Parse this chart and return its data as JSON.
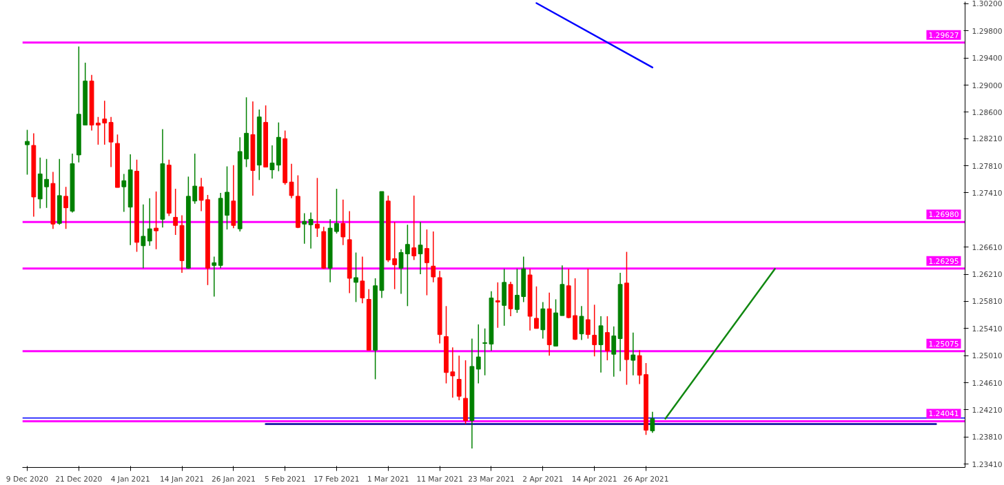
{
  "chart_data": {
    "type": "candlestick",
    "categories": [
      "9 Dec 2020",
      null,
      null,
      null,
      null,
      null,
      null,
      null,
      "21 Dec 2020",
      null,
      null,
      null,
      null,
      null,
      null,
      null,
      "4 Jan 2021",
      null,
      null,
      null,
      null,
      null,
      null,
      null,
      "14 Jan 2021",
      null,
      null,
      null,
      null,
      null,
      null,
      null,
      "26 Jan 2021",
      null,
      null,
      null,
      null,
      null,
      null,
      null,
      "5 Feb 2021",
      null,
      null,
      null,
      null,
      null,
      null,
      null,
      "17 Feb 2021",
      null,
      null,
      null,
      null,
      null,
      null,
      null,
      "1 Mar 2021",
      null,
      null,
      null,
      null,
      null,
      null,
      null,
      "11 Mar 2021",
      null,
      null,
      null,
      null,
      null,
      null,
      null,
      "23 Mar 2021",
      null,
      null,
      null,
      null,
      null,
      null,
      null,
      "2 Apr 2021",
      null,
      null,
      null,
      null,
      null,
      null,
      null,
      "14 Apr 2021",
      null,
      null,
      null,
      null,
      null,
      null,
      null,
      "26 Apr 2021",
      null,
      null,
      null,
      null,
      null,
      null,
      null,
      null,
      null,
      null,
      null,
      null,
      null,
      null,
      null,
      null,
      null,
      null,
      null,
      null,
      null,
      null,
      null,
      null,
      null,
      null,
      null,
      null,
      null,
      null,
      null,
      null,
      null,
      null,
      null,
      null,
      null,
      null,
      null,
      null,
      null,
      null,
      null,
      null,
      null,
      null,
      null,
      null,
      null
    ],
    "ylim": [
      1.2336,
      1.3023
    ],
    "yticks": [
      {
        "value": 1.302,
        "label": "1.30200"
      },
      {
        "value": 1.298,
        "label": "1.29800"
      },
      {
        "value": 1.294,
        "label": "1.29400"
      },
      {
        "value": 1.29,
        "label": "1.29000"
      },
      {
        "value": 1.286,
        "label": "1.28600"
      },
      {
        "value": 1.2821,
        "label": "1.28210"
      },
      {
        "value": 1.2781,
        "label": "1.27810"
      },
      {
        "value": 1.2741,
        "label": "1.27410"
      },
      {
        "value": 1.2661,
        "label": "1.26610"
      },
      {
        "value": 1.2621,
        "label": "1.26210"
      },
      {
        "value": 1.2581,
        "label": "1.25810"
      },
      {
        "value": 1.2541,
        "label": "1.25410"
      },
      {
        "value": 1.2501,
        "label": "1.25010"
      },
      {
        "value": 1.2461,
        "label": "1.24610"
      },
      {
        "value": 1.2421,
        "label": "1.24210"
      },
      {
        "value": 1.2381,
        "label": "1.23810"
      },
      {
        "value": 1.2341,
        "label": "1.23410"
      }
    ],
    "series": [
      {
        "colors": [
          "#008000",
          "#ff0000",
          "#008000",
          "#008000",
          "#ff0000",
          "#008000",
          "#ff0000",
          "#008000",
          "#008000",
          "#008000",
          "#ff0000",
          "#ff0000",
          "#ff0000",
          "#ff0000",
          "#ff0000",
          "#008000",
          "#008000",
          "#ff0000",
          "#008000",
          "#008000",
          "#ff0000",
          "#008000",
          "#ff0000",
          "#ff0000",
          "#ff0000",
          "#008000",
          "#008000",
          "#ff0000",
          "#ff0000",
          "#008000",
          "#008000",
          "#008000",
          "#ff0000",
          "#008000",
          "#008000",
          "#ff0000",
          "#008000",
          "#ff0000",
          "#008000",
          "#008000",
          "#ff0000",
          "#ff0000",
          "#ff0000",
          "#008000",
          "#008000",
          "#ff0000",
          "#ff0000",
          "#008000",
          "#008000",
          "#ff0000",
          "#ff0000",
          "#008000",
          "#ff0000",
          "#ff0000",
          "#008000",
          "#008000",
          "#ff0000",
          "#ff0000",
          "#008000",
          "#008000",
          "#ff0000",
          "#008000",
          "#ff0000",
          "#ff0000",
          "#ff0000",
          "#ff0000",
          "#ff0000",
          "#ff0000",
          "#ff0000",
          "#008000",
          "#008000",
          "#008000",
          "#008000",
          "#ff0000",
          "#008000",
          "#ff0000",
          "#008000",
          "#008000",
          "#ff0000",
          "#ff0000",
          "#008000",
          "#ff0000",
          "#008000",
          "#008000",
          "#ff0000",
          "#ff0000",
          "#008000",
          "#ff0000",
          "#ff0000",
          "#008000",
          "#ff0000",
          "#008000",
          "#008000",
          "#ff0000",
          "#008000",
          "#ff0000",
          "#ff0000",
          "#008000",
          null,
          null,
          null,
          null,
          null,
          null,
          null,
          null,
          null,
          null,
          null,
          null,
          null,
          null,
          null,
          null,
          null,
          null,
          null,
          null,
          null,
          null,
          null,
          null,
          null,
          null,
          null,
          null,
          null,
          null,
          null,
          null,
          null,
          null,
          null,
          null,
          null,
          null,
          null,
          null,
          null,
          null,
          null,
          null,
          null,
          null,
          null,
          null
        ],
        "ohlc": [
          [
            1.2812,
            1.2834,
            1.2768,
            1.2817
          ],
          [
            1.2811,
            1.2829,
            1.2706,
            1.2735
          ],
          [
            1.2732,
            1.2793,
            1.2718,
            1.2769
          ],
          [
            1.275,
            1.2791,
            1.2719,
            1.2761
          ],
          [
            1.2755,
            1.2772,
            1.2688,
            1.2695
          ],
          [
            1.2696,
            1.2791,
            1.2694,
            1.2737
          ],
          [
            1.2736,
            1.275,
            1.2688,
            1.2719
          ],
          [
            1.2714,
            1.2799,
            1.2712,
            1.2784
          ],
          [
            1.2797,
            1.2957,
            1.2786,
            1.2857
          ],
          [
            1.2841,
            1.2933,
            1.2841,
            1.2906
          ],
          [
            1.2906,
            1.2915,
            1.2833,
            1.2841
          ],
          [
            1.2844,
            1.2853,
            1.2812,
            1.2841
          ],
          [
            1.285,
            1.2877,
            1.2812,
            1.2844
          ],
          [
            1.2845,
            1.2853,
            1.2779,
            1.2816
          ],
          [
            1.2814,
            1.2827,
            1.2749,
            1.2749
          ],
          [
            1.275,
            1.2769,
            1.2713,
            1.2759
          ],
          [
            1.272,
            1.2798,
            1.2664,
            1.2775
          ],
          [
            1.2773,
            1.279,
            1.2654,
            1.2668
          ],
          [
            1.2663,
            1.2724,
            1.263,
            1.2677
          ],
          [
            1.267,
            1.2733,
            1.2663,
            1.2688
          ],
          [
            1.2689,
            1.2743,
            1.2658,
            1.2685
          ],
          [
            1.2702,
            1.2835,
            1.269,
            1.2784
          ],
          [
            1.2782,
            1.279,
            1.2707,
            1.2711
          ],
          [
            1.2705,
            1.2747,
            1.2679,
            1.2693
          ],
          [
            1.2693,
            1.2708,
            1.2623,
            1.2641
          ],
          [
            1.263,
            1.2765,
            1.2629,
            1.2736
          ],
          [
            1.2729,
            1.2799,
            1.2725,
            1.2751
          ],
          [
            1.275,
            1.2763,
            1.2714,
            1.273
          ],
          [
            1.2731,
            1.2738,
            1.2605,
            1.263
          ],
          [
            1.2634,
            1.2647,
            1.2588,
            1.2638
          ],
          [
            1.2634,
            1.2741,
            1.263,
            1.2733
          ],
          [
            1.2708,
            1.278,
            1.2687,
            1.2742
          ],
          [
            1.2729,
            1.2782,
            1.2689,
            1.2693
          ],
          [
            1.2688,
            1.2823,
            1.2684,
            1.2802
          ],
          [
            1.2791,
            1.2882,
            1.2779,
            1.2829
          ],
          [
            1.2827,
            1.2876,
            1.2737,
            1.2774
          ],
          [
            1.2782,
            1.2864,
            1.276,
            1.2853
          ],
          [
            1.2845,
            1.287,
            1.2779,
            1.2779
          ],
          [
            1.2775,
            1.2811,
            1.2762,
            1.2785
          ],
          [
            1.2782,
            1.2845,
            1.2773,
            1.2823
          ],
          [
            1.2821,
            1.2833,
            1.2753,
            1.2756
          ],
          [
            1.2757,
            1.2784,
            1.2733,
            1.2737
          ],
          [
            1.2736,
            1.2767,
            1.2689,
            1.269
          ],
          [
            1.2695,
            1.2711,
            1.2666,
            1.2699
          ],
          [
            1.2694,
            1.2712,
            1.2659,
            1.2702
          ],
          [
            1.2695,
            1.2763,
            1.2676,
            1.2689
          ],
          [
            1.2684,
            1.2691,
            1.2629,
            1.263
          ],
          [
            1.263,
            1.2702,
            1.2609,
            1.2689
          ],
          [
            1.2684,
            1.2747,
            1.2681,
            1.2696
          ],
          [
            1.2696,
            1.2731,
            1.2664,
            1.2676
          ],
          [
            1.2672,
            1.2714,
            1.2593,
            1.2615
          ],
          [
            1.2609,
            1.2653,
            1.258,
            1.2616
          ],
          [
            1.2611,
            1.2647,
            1.2578,
            1.2586
          ],
          [
            1.2584,
            1.2599,
            1.2509,
            1.2509
          ],
          [
            1.2509,
            1.2615,
            1.2466,
            1.2604
          ],
          [
            1.2597,
            1.2743,
            1.2586,
            1.2743
          ],
          [
            1.2729,
            1.2737,
            1.2639,
            1.2642
          ],
          [
            1.2644,
            1.2698,
            1.2599,
            1.2635
          ],
          [
            1.263,
            1.2658,
            1.2592,
            1.2653
          ],
          [
            1.2651,
            1.2694,
            1.2574,
            1.2665
          ],
          [
            1.266,
            1.2737,
            1.2642,
            1.2648
          ],
          [
            1.2651,
            1.2698,
            1.2621,
            1.2664
          ],
          [
            1.2659,
            1.2687,
            1.259,
            1.2638
          ],
          [
            1.2633,
            1.2684,
            1.2609,
            1.2617
          ],
          [
            1.2616,
            1.2626,
            1.2519,
            1.2532
          ],
          [
            1.2529,
            1.2574,
            1.246,
            1.2476
          ],
          [
            1.2477,
            1.2513,
            1.2439,
            1.2471
          ],
          [
            1.2466,
            1.2501,
            1.2435,
            1.2441
          ],
          [
            1.2438,
            1.2494,
            1.24,
            1.2405
          ],
          [
            1.2405,
            1.2526,
            1.2364,
            1.2485
          ],
          [
            1.2481,
            1.2547,
            1.246,
            1.2499
          ],
          [
            1.2519,
            1.2541,
            1.2472,
            1.252
          ],
          [
            1.2518,
            1.2596,
            1.2508,
            1.2586
          ],
          [
            1.2582,
            1.2609,
            1.2542,
            1.258
          ],
          [
            1.2575,
            1.2629,
            1.2545,
            1.2609
          ],
          [
            1.2606,
            1.261,
            1.2559,
            1.257
          ],
          [
            1.2569,
            1.2629,
            1.2564,
            1.259
          ],
          [
            1.2588,
            1.2647,
            1.258,
            1.2629
          ],
          [
            1.262,
            1.2629,
            1.2538,
            1.2559
          ],
          [
            1.2556,
            1.2603,
            1.2541,
            1.2541
          ],
          [
            1.2539,
            1.258,
            1.2526,
            1.257
          ],
          [
            1.257,
            1.2594,
            1.2501,
            1.2517
          ],
          [
            1.2515,
            1.2584,
            1.2515,
            1.2564
          ],
          [
            1.256,
            1.2634,
            1.256,
            1.2606
          ],
          [
            1.2604,
            1.2629,
            1.2556,
            1.2557
          ],
          [
            1.256,
            1.2615,
            1.2524,
            1.2525
          ],
          [
            1.2533,
            1.2574,
            1.2524,
            1.2559
          ],
          [
            1.2554,
            1.2629,
            1.2526,
            1.2532
          ],
          [
            1.2531,
            1.2576,
            1.25,
            1.2517
          ],
          [
            1.2517,
            1.2559,
            1.2476,
            1.2545
          ],
          [
            1.2535,
            1.2559,
            1.2494,
            1.2508
          ],
          [
            1.2503,
            1.2544,
            1.247,
            1.253
          ],
          [
            1.2526,
            1.2623,
            1.2478,
            1.2606
          ],
          [
            1.2608,
            1.2654,
            1.2458,
            1.2495
          ],
          [
            1.2494,
            1.2535,
            1.2472,
            1.2502
          ],
          [
            1.2501,
            1.2509,
            1.2459,
            1.2472
          ],
          [
            1.2473,
            1.249,
            1.2384,
            1.2391
          ],
          [
            1.239,
            1.2418,
            1.2387,
            1.2408
          ],
          null,
          null,
          null,
          null,
          null,
          null,
          null,
          null,
          null,
          null,
          null,
          null,
          null,
          null,
          null,
          null,
          null,
          null,
          null,
          null,
          null,
          null,
          null,
          null,
          null,
          null,
          null,
          null,
          null,
          null,
          null,
          null,
          null,
          null,
          null,
          null,
          null,
          null,
          null,
          null,
          null,
          null,
          null,
          null,
          null,
          null,
          null,
          null
        ]
      },
      {
        "type": "line",
        "color": "#0000ff",
        "values": [
          null,
          null,
          null,
          null,
          null,
          null,
          null,
          null,
          null,
          null,
          null,
          null,
          null,
          null,
          null,
          null,
          null,
          null,
          null,
          null,
          null,
          null,
          null,
          null,
          null,
          null,
          null,
          null,
          null,
          null,
          null,
          null,
          null,
          null,
          null,
          null,
          null,
          null,
          null,
          null,
          null,
          null,
          null,
          null,
          null,
          null,
          null,
          null,
          null,
          null,
          null,
          null,
          null,
          null,
          null,
          null,
          null,
          null,
          null,
          null,
          null,
          null,
          null,
          null,
          null,
          null,
          null,
          null,
          null,
          null,
          null,
          null,
          null,
          null,
          null,
          null,
          null,
          null,
          null,
          1.3021,
          null,
          null,
          null,
          null,
          null,
          null,
          null,
          null,
          null,
          null,
          null,
          null,
          null,
          null,
          null,
          null,
          null,
          1.2926,
          null,
          null,
          null,
          null,
          null,
          null,
          null,
          null,
          null,
          null,
          null,
          null,
          null,
          null,
          null,
          null,
          null,
          null,
          null,
          null,
          null,
          null,
          null,
          null,
          null,
          null,
          null,
          null,
          null,
          null,
          null,
          null,
          null,
          null,
          null,
          null,
          null,
          null,
          null,
          null,
          null,
          null,
          null,
          null,
          null,
          null,
          null,
          null
        ]
      },
      {
        "type": "line",
        "color": "#000099",
        "values": [
          null,
          null,
          null,
          null,
          null,
          null,
          null,
          null,
          null,
          null,
          null,
          null,
          null,
          null,
          null,
          null,
          null,
          null,
          null,
          null,
          null,
          null,
          null,
          null,
          null,
          null,
          null,
          null,
          null,
          null,
          null,
          null,
          null,
          null,
          null,
          null,
          null,
          1.24,
          null,
          null,
          null,
          null,
          null,
          null,
          null,
          null,
          null,
          null,
          null,
          null,
          null,
          null,
          null,
          null,
          null,
          null,
          null,
          null,
          null,
          null,
          null,
          null,
          null,
          null,
          null,
          null,
          null,
          null,
          null,
          null,
          null,
          null,
          null,
          null,
          null,
          null,
          null,
          null,
          null,
          null,
          null,
          null,
          null,
          null,
          null,
          null,
          null,
          null,
          null,
          null,
          null,
          null,
          null,
          null,
          null,
          null,
          null,
          null,
          null,
          null,
          null,
          null,
          null,
          null,
          null,
          null,
          null,
          null,
          null,
          null,
          null,
          null,
          null,
          null,
          null,
          null,
          null,
          null,
          null,
          null,
          null,
          null,
          null,
          null,
          null,
          null,
          null,
          null,
          null,
          null,
          null,
          null,
          null,
          null,
          null,
          null,
          null,
          null,
          null,
          null,
          null,
          1.24,
          null,
          null,
          null,
          null
        ]
      },
      {
        "type": "line",
        "color": "#118811",
        "values": [
          null,
          null,
          null,
          null,
          null,
          null,
          null,
          null,
          null,
          null,
          null,
          null,
          null,
          null,
          null,
          null,
          null,
          null,
          null,
          null,
          null,
          null,
          null,
          null,
          null,
          null,
          null,
          null,
          null,
          null,
          null,
          null,
          null,
          null,
          null,
          null,
          null,
          null,
          null,
          null,
          null,
          null,
          null,
          null,
          null,
          null,
          null,
          null,
          null,
          null,
          null,
          null,
          null,
          null,
          null,
          null,
          null,
          null,
          null,
          null,
          null,
          null,
          null,
          null,
          null,
          null,
          null,
          null,
          null,
          null,
          null,
          null,
          null,
          null,
          null,
          null,
          null,
          null,
          null,
          null,
          null,
          null,
          null,
          null,
          null,
          null,
          null,
          null,
          null,
          null,
          null,
          null,
          null,
          null,
          null,
          null,
          null,
          null,
          null,
          1.2408,
          null,
          null,
          null,
          null,
          null,
          null,
          null,
          null,
          null,
          null,
          null,
          null,
          null,
          null,
          null,
          null,
          1.2629,
          null,
          null,
          null,
          null,
          null,
          null,
          null,
          null,
          null,
          null,
          null,
          null,
          null,
          null,
          null,
          null,
          null,
          null,
          null,
          null,
          null,
          null,
          null,
          null,
          null,
          null,
          null,
          null,
          null
        ]
      }
    ],
    "ref_lines": [
      {
        "axis": "y",
        "value": 1.29627,
        "label": "1.29627",
        "color": "#ff00ff"
      },
      {
        "axis": "y",
        "value": 1.2698,
        "label": "1.26980",
        "color": "#ff00ff"
      },
      {
        "axis": "y",
        "value": 1.26295,
        "label": "1.26295",
        "color": "#ff00ff"
      },
      {
        "axis": "y",
        "value": 1.25075,
        "label": "1.25075",
        "color": "#ff00ff"
      },
      {
        "axis": "y",
        "value": 1.24041,
        "label": "1.24041",
        "color": "#ff00ff"
      },
      {
        "axis": "y",
        "value": 1.2409,
        "label": null,
        "color": "#0000ff"
      }
    ]
  }
}
